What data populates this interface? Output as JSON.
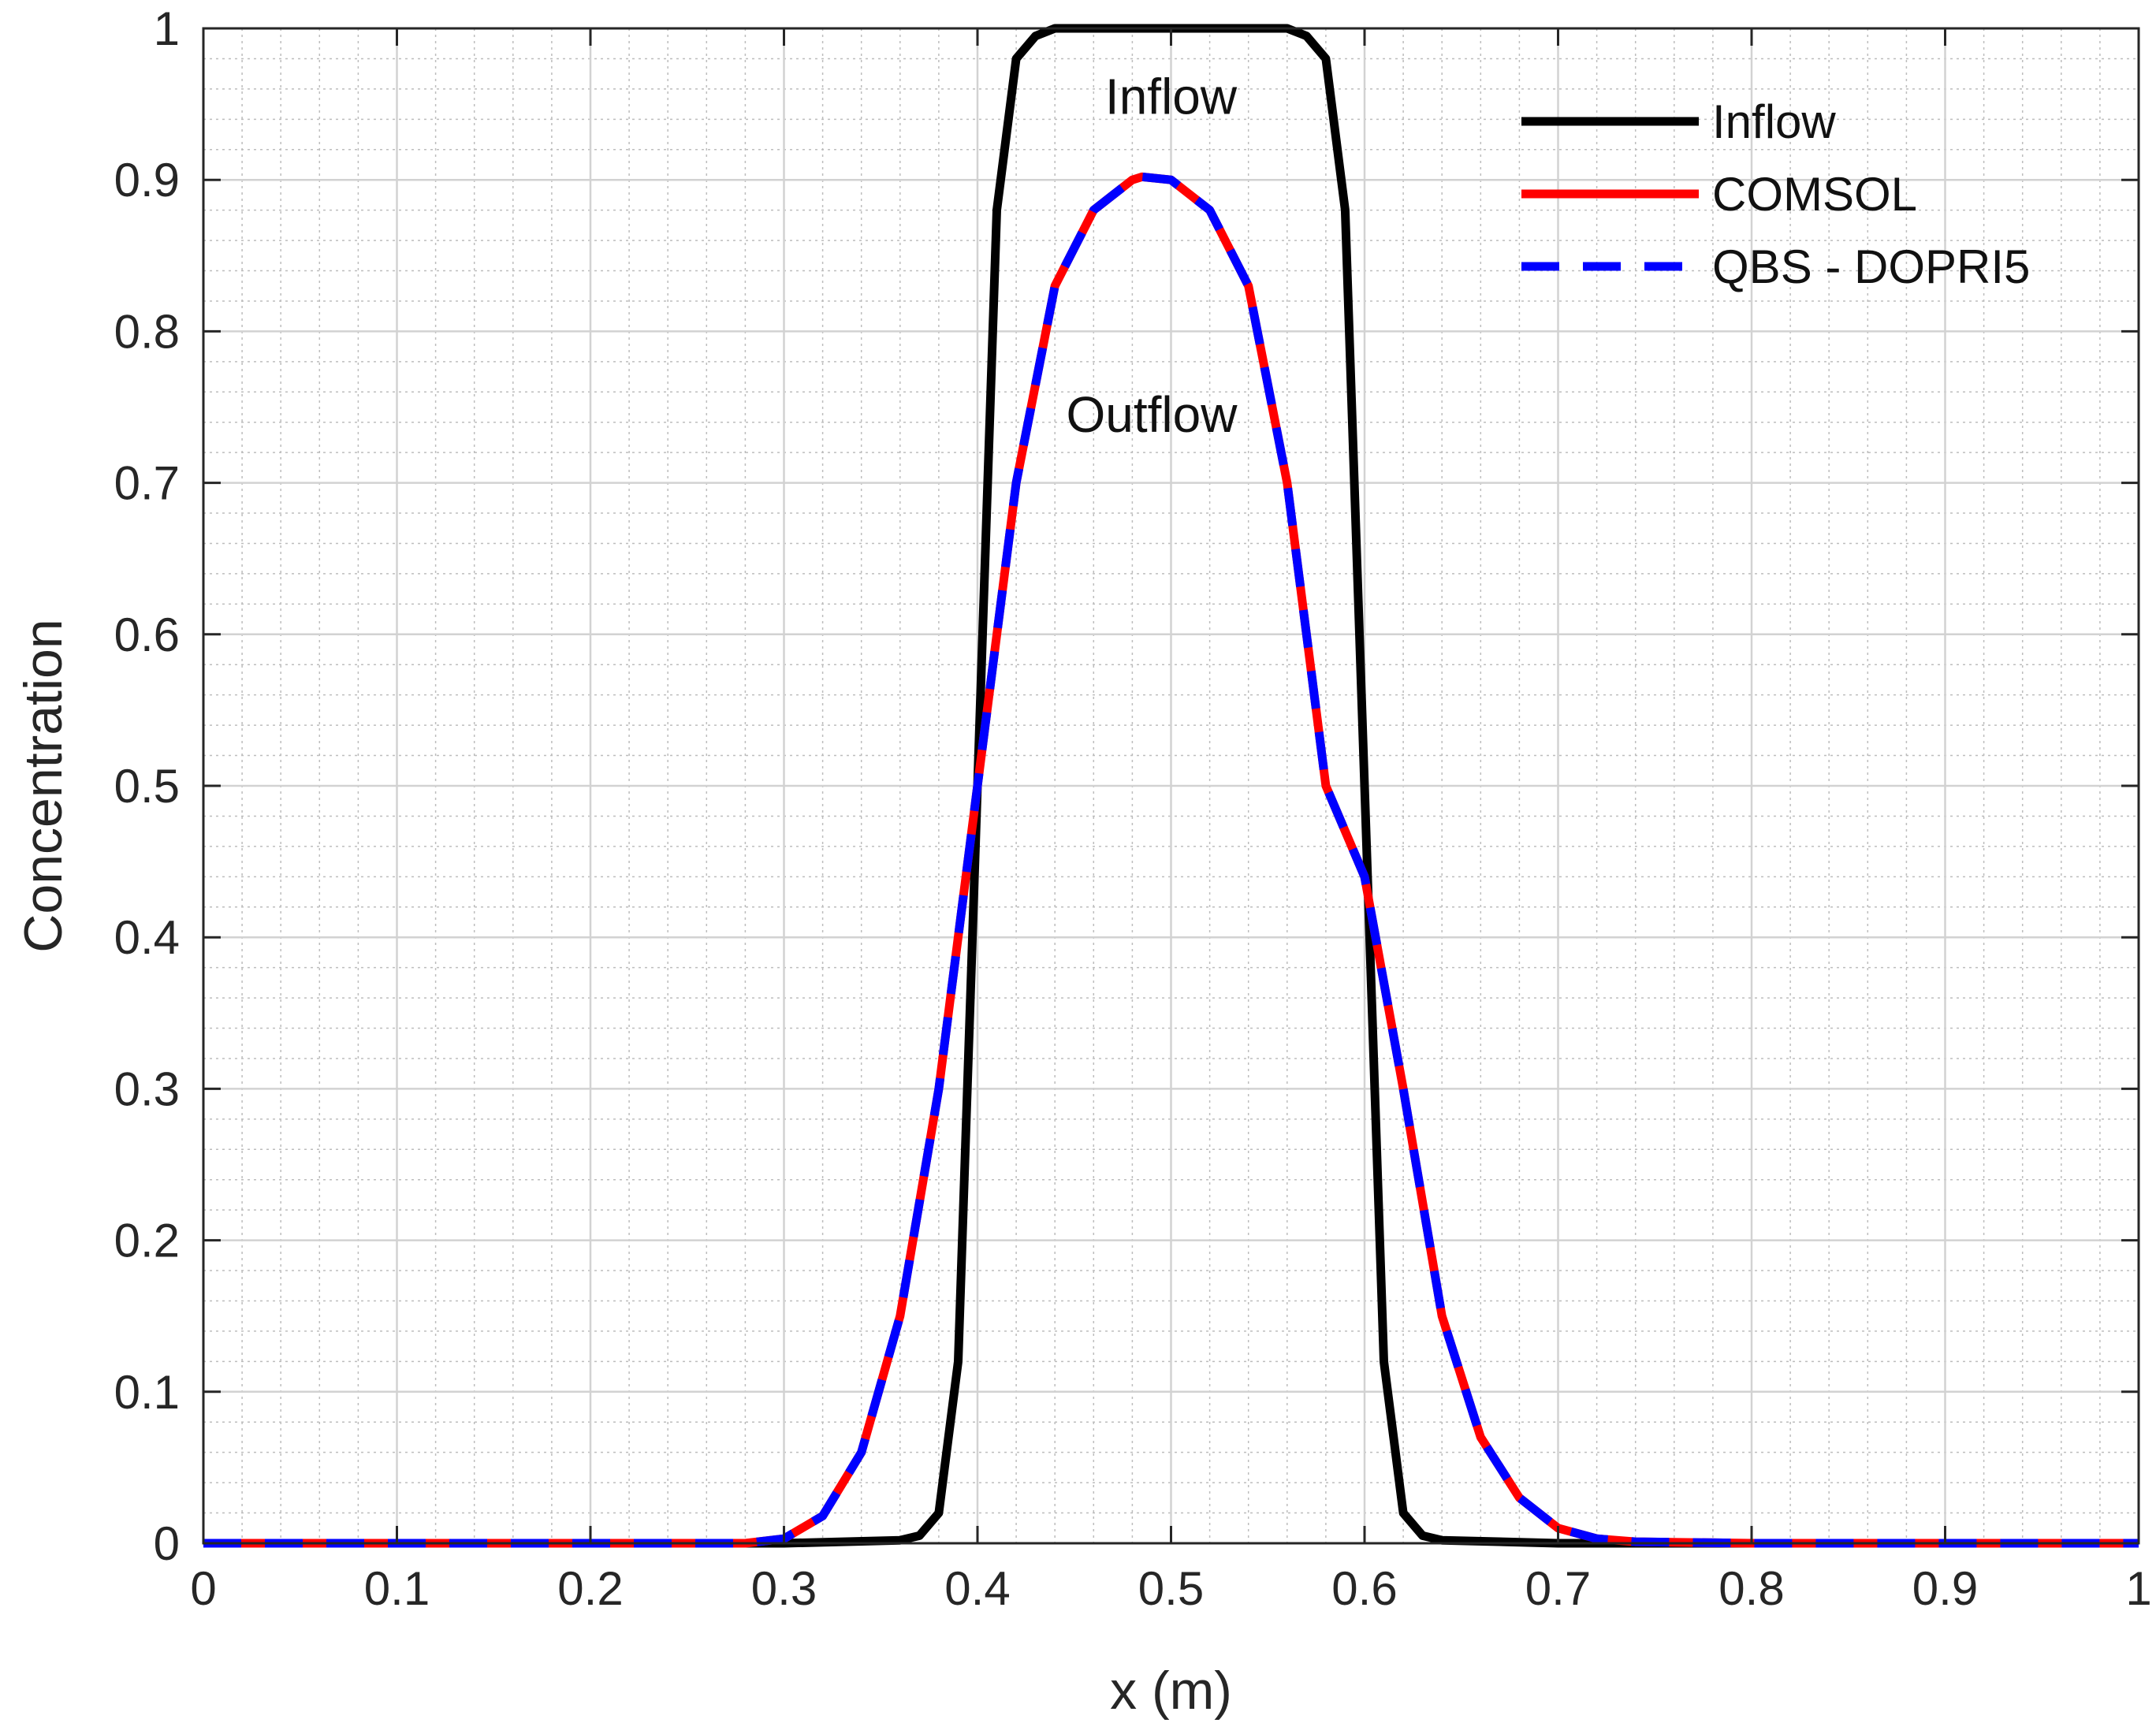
{
  "chart_data": {
    "type": "line",
    "title": "",
    "xlabel": "x (m)",
    "ylabel": "Concentration",
    "xlim": [
      0,
      1
    ],
    "ylim": [
      0,
      1
    ],
    "xticks": [
      "0",
      "0.1",
      "0.2",
      "0.3",
      "0.4",
      "0.5",
      "0.6",
      "0.7",
      "0.8",
      "0.9",
      "1"
    ],
    "yticks": [
      "0",
      "0.1",
      "0.2",
      "0.3",
      "0.4",
      "0.5",
      "0.6",
      "0.7",
      "0.8",
      "0.9",
      "1"
    ],
    "grid": true,
    "minor_grid": true,
    "legend_position": "top-right",
    "annotations": [
      {
        "text": "Inflow",
        "x": 0.5,
        "y": 0.955
      },
      {
        "text": "Outflow",
        "x": 0.49,
        "y": 0.745
      }
    ],
    "series": [
      {
        "name": "Inflow",
        "color": "#000000",
        "style": "solid",
        "x": [
          0,
          0.1,
          0.2,
          0.3,
          0.36,
          0.37,
          0.38,
          0.39,
          0.4,
          0.41,
          0.42,
          0.43,
          0.44,
          0.45,
          0.5,
          0.55,
          0.56,
          0.57,
          0.58,
          0.59,
          0.6,
          0.61,
          0.62,
          0.63,
          0.64,
          0.7,
          0.8,
          0.9,
          1
        ],
        "y": [
          0,
          0,
          0,
          0,
          0.002,
          0.005,
          0.02,
          0.12,
          0.5,
          0.88,
          0.98,
          0.995,
          1,
          1,
          1,
          1,
          1,
          0.995,
          0.98,
          0.88,
          0.5,
          0.12,
          0.02,
          0.005,
          0.002,
          0,
          0,
          0,
          1e-09
        ]
      },
      {
        "name": "COMSOL",
        "color": "#ff0000",
        "style": "solid",
        "x": [
          0,
          0.1,
          0.2,
          0.28,
          0.3,
          0.32,
          0.34,
          0.36,
          0.38,
          0.4,
          0.42,
          0.44,
          0.46,
          0.48,
          0.485,
          0.5,
          0.52,
          0.54,
          0.56,
          0.58,
          0.6,
          0.62,
          0.64,
          0.66,
          0.68,
          0.7,
          0.72,
          0.74,
          0.8,
          0.9,
          1
        ],
        "y": [
          0,
          0,
          0,
          0,
          0.003,
          0.018,
          0.06,
          0.15,
          0.3,
          0.5,
          0.7,
          0.83,
          0.88,
          0.9,
          0.902,
          0.9,
          0.88,
          0.83,
          0.7,
          0.5,
          0.44,
          0.3,
          0.15,
          0.07,
          0.03,
          0.01,
          0.003,
          0.001,
          0,
          0,
          0
        ]
      },
      {
        "name": "QBS - DOPRI5",
        "color": "#0000ff",
        "style": "dashed",
        "x": [
          0,
          0.1,
          0.2,
          0.28,
          0.3,
          0.32,
          0.34,
          0.36,
          0.38,
          0.4,
          0.42,
          0.44,
          0.46,
          0.48,
          0.485,
          0.5,
          0.52,
          0.54,
          0.56,
          0.58,
          0.6,
          0.62,
          0.64,
          0.66,
          0.68,
          0.7,
          0.72,
          0.74,
          0.8,
          0.9,
          1
        ],
        "y": [
          0,
          0,
          0,
          0,
          0.003,
          0.018,
          0.06,
          0.15,
          0.3,
          0.5,
          0.7,
          0.83,
          0.88,
          0.9,
          0.902,
          0.9,
          0.88,
          0.83,
          0.7,
          0.5,
          0.44,
          0.3,
          0.15,
          0.07,
          0.03,
          0.01,
          0.003,
          0.001,
          0,
          0,
          0
        ]
      }
    ]
  }
}
